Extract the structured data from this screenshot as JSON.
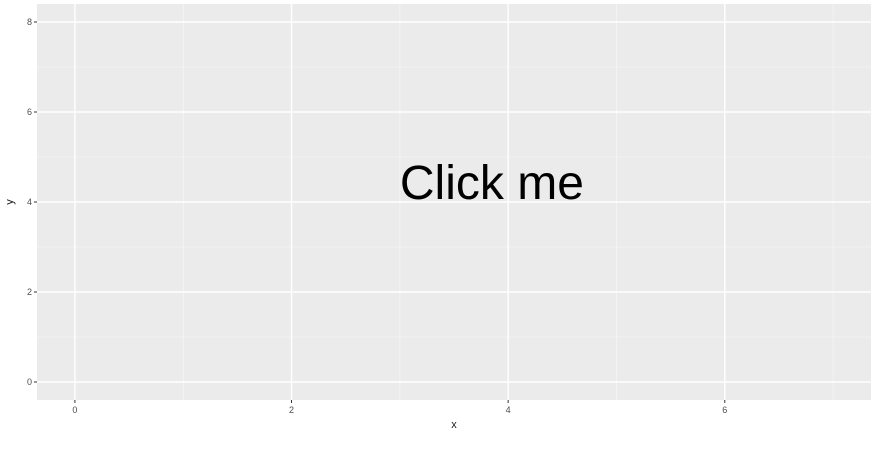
{
  "chart_data": {
    "type": "scatter",
    "xlabel": "x",
    "ylabel": "y",
    "xlim": [
      -0.35,
      7.35
    ],
    "ylim": [
      -0.4,
      8.4
    ],
    "x_ticks": [
      0,
      2,
      4,
      6
    ],
    "y_ticks": [
      0,
      2,
      4,
      6,
      8
    ],
    "x_minor": [
      1,
      3,
      5,
      7
    ],
    "y_minor": [
      1,
      3,
      5,
      7
    ],
    "grid": true,
    "series": [],
    "annotations": [
      {
        "text": "Click me",
        "x": 3.85,
        "y": 4.35
      }
    ]
  },
  "colors": {
    "panel_background": "#ebebeb",
    "grid_major": "#ffffff",
    "grid_minor": "#f5f5f5",
    "tick_text": "#4d4d4d",
    "tick_mark": "#333333"
  }
}
